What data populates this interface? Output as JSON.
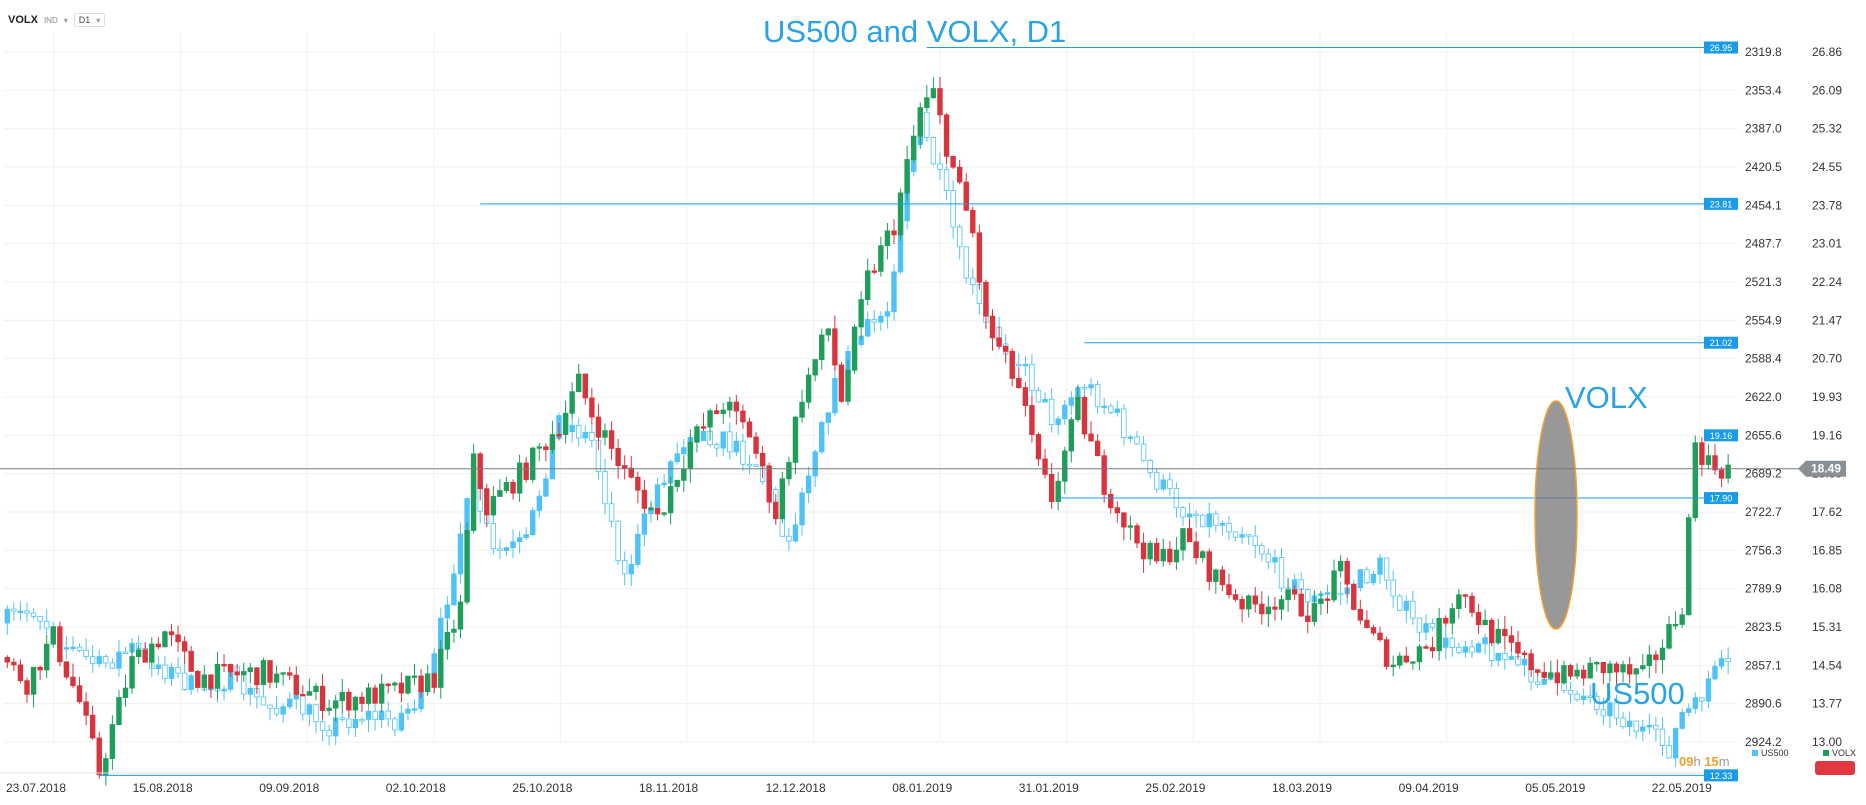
{
  "toolbar": {
    "symbol": "VOLX",
    "market": "IND",
    "timeframe": "D1"
  },
  "annotations": {
    "volx_label": "VOLX",
    "us500_label": "US500"
  },
  "timer": {
    "hours": "09",
    "h_unit": "h",
    "minutes": "15",
    "m_unit": "m"
  },
  "legend": [
    {
      "name": "US500",
      "color": "#4fc3f7"
    },
    {
      "name": "VOLX",
      "color": "#1e9e5a"
    }
  ],
  "colors": {
    "up": "#1e9e5a",
    "down": "#d8343e",
    "us500": "#4fc3f7",
    "line": "#1a9be8",
    "tag": "#1a9be8",
    "current_tag": "#8a8f94",
    "ellipse_fill": "#707070",
    "ellipse_stroke": "#f0a030"
  },
  "chart_data": {
    "type": "candlestick",
    "title": "US500 and VOLX, D1",
    "x_ticks": [
      "23.07.2018",
      "15.08.2018",
      "09.09.2018",
      "02.10.2018",
      "25.10.2018",
      "18.11.2018",
      "12.12.2018",
      "08.01.2019",
      "31.01.2019",
      "25.02.2019",
      "18.03.2019",
      "09.04.2019",
      "05.05.2019",
      "22.05.2019"
    ],
    "y_axis_us500": {
      "inverted": true,
      "range": [
        2319.8,
        2924.2
      ],
      "ticks": [
        2319.8,
        2353.4,
        2387.0,
        2420.5,
        2454.1,
        2487.7,
        2521.3,
        2554.9,
        2588.4,
        2622.0,
        2655.6,
        2689.2,
        2722.7,
        2756.3,
        2789.9,
        2823.5,
        2857.1,
        2890.6,
        2924.2
      ]
    },
    "y_axis_volx": {
      "range": [
        13.0,
        26.86
      ],
      "ticks": [
        26.86,
        26.09,
        25.32,
        24.55,
        23.78,
        23.01,
        22.24,
        21.47,
        20.7,
        19.93,
        19.16,
        18.39,
        17.62,
        16.85,
        16.08,
        15.31,
        14.54,
        13.77,
        13.0
      ]
    },
    "levels": [
      {
        "value": "26.95",
        "y": 26.95,
        "from_bar": 140
      },
      {
        "value": "23.81",
        "y": 23.81,
        "from_bar": 72
      },
      {
        "value": "21.02",
        "y": 21.02,
        "from_bar": 164
      },
      {
        "value": "19.16",
        "y": 19.16,
        "from_bar": 261
      },
      {
        "value": "17.90",
        "y": 17.9,
        "from_bar": 160
      },
      {
        "value": "12.33",
        "y": 12.33,
        "from_bar": 14
      }
    ],
    "current": {
      "value": "18.49",
      "y": 18.49
    },
    "volx_anchors": [
      [
        0,
        14.7
      ],
      [
        4,
        14.2
      ],
      [
        8,
        15.1
      ],
      [
        12,
        13.8
      ],
      [
        15,
        12.4
      ],
      [
        20,
        14.6
      ],
      [
        25,
        15.2
      ],
      [
        30,
        14.3
      ],
      [
        40,
        14.4
      ],
      [
        50,
        13.8
      ],
      [
        60,
        14.0
      ],
      [
        66,
        14.3
      ],
      [
        70,
        15.7
      ],
      [
        72,
        18.6
      ],
      [
        74,
        17.7
      ],
      [
        80,
        18.5
      ],
      [
        85,
        19.4
      ],
      [
        88,
        20.2
      ],
      [
        90,
        19.6
      ],
      [
        95,
        18.4
      ],
      [
        100,
        17.5
      ],
      [
        105,
        19.0
      ],
      [
        110,
        19.8
      ],
      [
        114,
        19.2
      ],
      [
        118,
        17.6
      ],
      [
        122,
        20.0
      ],
      [
        126,
        21.3
      ],
      [
        128,
        19.9
      ],
      [
        132,
        22.3
      ],
      [
        136,
        23.4
      ],
      [
        140,
        25.7
      ],
      [
        142,
        26.0
      ],
      [
        145,
        24.5
      ],
      [
        148,
        23.2
      ],
      [
        150,
        21.4
      ],
      [
        155,
        20.1
      ],
      [
        158,
        18.5
      ],
      [
        160,
        17.9
      ],
      [
        164,
        19.7
      ],
      [
        168,
        18.2
      ],
      [
        172,
        17.2
      ],
      [
        176,
        16.6
      ],
      [
        180,
        17.1
      ],
      [
        185,
        16.3
      ],
      [
        190,
        15.7
      ],
      [
        195,
        15.9
      ],
      [
        200,
        15.6
      ],
      [
        204,
        16.4
      ],
      [
        208,
        15.2
      ],
      [
        212,
        14.6
      ],
      [
        218,
        15.0
      ],
      [
        222,
        16.1
      ],
      [
        226,
        15.3
      ],
      [
        232,
        14.6
      ],
      [
        238,
        14.3
      ],
      [
        244,
        14.5
      ],
      [
        250,
        14.3
      ],
      [
        254,
        15.2
      ],
      [
        256,
        15.8
      ],
      [
        258,
        19.0
      ],
      [
        260,
        18.6
      ],
      [
        262,
        18.5
      ]
    ],
    "us500_anchors": [
      [
        0,
        2820
      ],
      [
        5,
        2808
      ],
      [
        10,
        2840
      ],
      [
        15,
        2858
      ],
      [
        20,
        2842
      ],
      [
        25,
        2860
      ],
      [
        30,
        2878
      ],
      [
        35,
        2868
      ],
      [
        40,
        2892
      ],
      [
        45,
        2892
      ],
      [
        50,
        2910
      ],
      [
        55,
        2900
      ],
      [
        60,
        2905
      ],
      [
        65,
        2880
      ],
      [
        70,
        2740
      ],
      [
        72,
        2700
      ],
      [
        75,
        2760
      ],
      [
        80,
        2750
      ],
      [
        85,
        2640
      ],
      [
        90,
        2660
      ],
      [
        95,
        2780
      ],
      [
        100,
        2700
      ],
      [
        105,
        2650
      ],
      [
        110,
        2660
      ],
      [
        115,
        2680
      ],
      [
        120,
        2750
      ],
      [
        125,
        2640
      ],
      [
        130,
        2575
      ],
      [
        135,
        2545
      ],
      [
        138,
        2420
      ],
      [
        140,
        2380
      ],
      [
        144,
        2450
      ],
      [
        146,
        2500
      ],
      [
        150,
        2560
      ],
      [
        155,
        2590
      ],
      [
        160,
        2640
      ],
      [
        165,
        2610
      ],
      [
        170,
        2640
      ],
      [
        175,
        2690
      ],
      [
        180,
        2720
      ],
      [
        185,
        2730
      ],
      [
        190,
        2740
      ],
      [
        195,
        2780
      ],
      [
        200,
        2800
      ],
      [
        205,
        2790
      ],
      [
        210,
        2770
      ],
      [
        215,
        2820
      ],
      [
        220,
        2840
      ],
      [
        225,
        2835
      ],
      [
        230,
        2855
      ],
      [
        235,
        2870
      ],
      [
        240,
        2880
      ],
      [
        245,
        2895
      ],
      [
        250,
        2915
      ],
      [
        254,
        2930
      ],
      [
        256,
        2900
      ],
      [
        258,
        2895
      ],
      [
        260,
        2870
      ],
      [
        262,
        2860
      ]
    ]
  }
}
